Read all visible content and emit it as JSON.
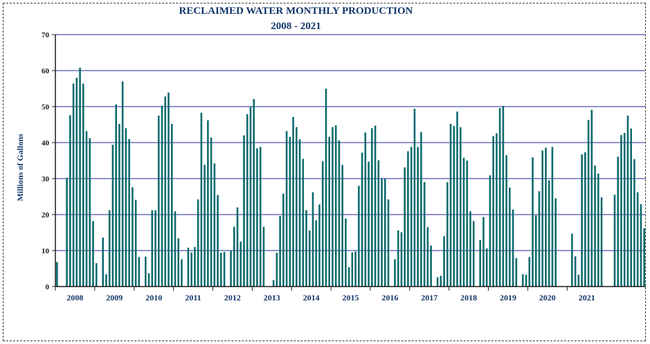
{
  "chart_data": {
    "type": "bar",
    "title": "RECLAIMED WATER MONTHLY PRODUCTION",
    "subtitle": "2008 - 2021",
    "ylabel": "Millions of Gallons",
    "ylim": [
      0,
      70
    ],
    "yticks": [
      0,
      10,
      20,
      30,
      40,
      50,
      60,
      70
    ],
    "grid": true,
    "colors": {
      "bar": "#0e6b6e",
      "grid": "#1f2a8a",
      "axis": "#1a1a1a",
      "title": "#12366b"
    },
    "x_labels": [
      "2008",
      "2009",
      "2010",
      "2011",
      "2012",
      "2013",
      "2014",
      "2015",
      "2016",
      "2017",
      "2018",
      "2019",
      "2020",
      "2021"
    ],
    "series": [
      {
        "year": "2008",
        "values": [
          6.8,
          0,
          0,
          30.2,
          47.6,
          56.4,
          58.0,
          60.8,
          56.4,
          43.2,
          41.2,
          18.2
        ]
      },
      {
        "year": "2009",
        "values": [
          6.5,
          0,
          13.6,
          3.4,
          21.2,
          39.4,
          50.6,
          45.2,
          57.0,
          44.0,
          41.0,
          27.6
        ]
      },
      {
        "year": "2010",
        "values": [
          24.1,
          8.2,
          0,
          8.3,
          3.7,
          21.2,
          21.2,
          47.5,
          50.2,
          52.8,
          53.9,
          45.2
        ]
      },
      {
        "year": "2011",
        "values": [
          20.9,
          13.4,
          7.6,
          0,
          10.8,
          9.5,
          11.0,
          24.2,
          48.3,
          33.8,
          46.2,
          41.4
        ]
      },
      {
        "year": "2012",
        "values": [
          34.2,
          25.4,
          9.4,
          9.6,
          0,
          10.0,
          16.6,
          22.0,
          12.5,
          42.0,
          47.9,
          50.0
        ]
      },
      {
        "year": "2013",
        "values": [
          52.1,
          38.4,
          38.8,
          16.6,
          0,
          0,
          1.8,
          9.4,
          19.6,
          25.8,
          43.2,
          41.6
        ]
      },
      {
        "year": "2014",
        "values": [
          47.1,
          44.3,
          40.9,
          35.5,
          21.2,
          15.6,
          26.2,
          18.4,
          22.8,
          34.8,
          55.0,
          41.6
        ]
      },
      {
        "year": "2015",
        "values": [
          44.3,
          44.8,
          40.6,
          33.8,
          18.9,
          5.4,
          9.5,
          9.7,
          28.0,
          37.2,
          42.8,
          34.7
        ]
      },
      {
        "year": "2016",
        "values": [
          44.0,
          44.7,
          35.1,
          29.9,
          29.9,
          24.2,
          0,
          7.6,
          15.6,
          15.1,
          33.1,
          37.6
        ]
      },
      {
        "year": "2017",
        "values": [
          38.8,
          49.4,
          38.8,
          42.9,
          29.0,
          16.5,
          11.4,
          0,
          2.6,
          3.0,
          14.0,
          29.0
        ]
      },
      {
        "year": "2018",
        "values": [
          45.2,
          44.6,
          48.6,
          44.3,
          35.8,
          35.0,
          20.9,
          18.2,
          0,
          12.9,
          19.3,
          10.6
        ]
      },
      {
        "year": "2019",
        "values": [
          30.9,
          41.8,
          42.6,
          49.6,
          50.2,
          36.5,
          27.5,
          21.4,
          7.9,
          0,
          3.4,
          3.3
        ]
      },
      {
        "year": "2020",
        "values": [
          8.2,
          35.9,
          19.8,
          26.5,
          37.8,
          38.6,
          29.5,
          38.8,
          24.5,
          0,
          0,
          0
        ]
      },
      {
        "year": "2021",
        "values": [
          0,
          14.7,
          8.4,
          3.3,
          36.7,
          37.3,
          46.3,
          49.1,
          33.6,
          31.4,
          24.8,
          0
        ]
      }
    ],
    "tail": {
      "note_visible": false,
      "values": [
        0,
        0,
        25.5,
        36.1,
        42.1,
        42.7,
        47.5,
        43.9,
        35.4,
        26.2,
        22.9,
        16.2
      ]
    }
  }
}
